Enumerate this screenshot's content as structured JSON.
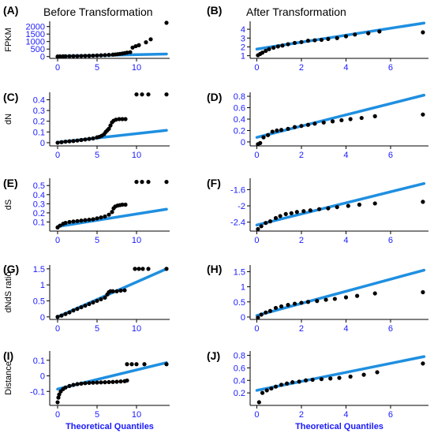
{
  "colors": {
    "points": "#000000",
    "ref_line": "#1f8fe0",
    "ticks": "#1a1aff",
    "axis": "#000000"
  },
  "chart_data": [
    {
      "panel": "(A)",
      "title": "Before Transformation",
      "type": "scatter",
      "ylabel": "FPKM",
      "xlabel": "",
      "xlim": [
        -1,
        14.2
      ],
      "ylim": [
        -120,
        2350
      ],
      "xticks": [
        0,
        5,
        10
      ],
      "yticks": [
        0,
        500,
        1000,
        1500,
        2000
      ],
      "line": {
        "x": [
          0,
          13.8
        ],
        "y": [
          20,
          170
        ]
      },
      "points": [
        [
          0,
          8
        ],
        [
          0.3,
          14
        ],
        [
          0.7,
          18
        ],
        [
          1,
          22
        ],
        [
          1.5,
          26
        ],
        [
          2,
          30
        ],
        [
          2.5,
          34
        ],
        [
          3,
          40
        ],
        [
          3.5,
          46
        ],
        [
          4,
          52
        ],
        [
          4.5,
          60
        ],
        [
          5,
          70
        ],
        [
          5.5,
          82
        ],
        [
          6,
          95
        ],
        [
          6.5,
          110
        ],
        [
          7,
          128
        ],
        [
          7.3,
          140
        ],
        [
          7.6,
          160
        ],
        [
          7.9,
          180
        ],
        [
          8.2,
          200
        ],
        [
          8.5,
          230
        ],
        [
          8.8,
          260
        ],
        [
          9.2,
          290
        ],
        [
          9.5,
          600
        ],
        [
          9.9,
          690
        ],
        [
          10.3,
          760
        ],
        [
          11.2,
          950
        ],
        [
          11.8,
          1150
        ],
        [
          13.8,
          2250
        ]
      ]
    },
    {
      "panel": "(B)",
      "title": "After Transformation",
      "type": "scatter",
      "ylabel": "",
      "xlabel": "",
      "xlim": [
        -0.3,
        7.7
      ],
      "ylim": [
        0.7,
        4.9
      ],
      "xticks": [
        0,
        2,
        4,
        6
      ],
      "yticks": [
        1,
        2,
        3,
        4
      ],
      "line": {
        "x": [
          0,
          7.5
        ],
        "y": [
          1.75,
          4.7
        ]
      },
      "points": [
        [
          0.05,
          1.05
        ],
        [
          0.15,
          1.2
        ],
        [
          0.25,
          1.35
        ],
        [
          0.4,
          1.55
        ],
        [
          0.55,
          1.75
        ],
        [
          0.75,
          1.9
        ],
        [
          0.95,
          2.05
        ],
        [
          1.15,
          2.15
        ],
        [
          1.4,
          2.3
        ],
        [
          1.7,
          2.45
        ],
        [
          2.0,
          2.55
        ],
        [
          2.3,
          2.7
        ],
        [
          2.6,
          2.75
        ],
        [
          2.9,
          2.8
        ],
        [
          3.2,
          2.9
        ],
        [
          3.6,
          3.0
        ],
        [
          4.0,
          3.2
        ],
        [
          4.4,
          3.4
        ],
        [
          5.0,
          3.55
        ],
        [
          5.5,
          3.75
        ],
        [
          7.45,
          3.65
        ]
      ]
    },
    {
      "panel": "(C)",
      "title": "",
      "type": "scatter",
      "ylabel": "dN",
      "xlabel": "",
      "xlim": [
        -1,
        14.2
      ],
      "ylim": [
        -0.03,
        0.47
      ],
      "xticks": [
        0,
        5,
        10
      ],
      "yticks": [
        0.0,
        0.1,
        0.2,
        0.3,
        0.4
      ],
      "line": {
        "x": [
          0,
          13.8
        ],
        "y": [
          0.003,
          0.115
        ]
      },
      "points": [
        [
          0,
          0.0
        ],
        [
          0.5,
          0.005
        ],
        [
          1,
          0.01
        ],
        [
          1.5,
          0.013
        ],
        [
          2,
          0.016
        ],
        [
          2.5,
          0.02
        ],
        [
          3,
          0.025
        ],
        [
          3.5,
          0.03
        ],
        [
          4,
          0.035
        ],
        [
          4.5,
          0.04
        ],
        [
          5,
          0.05
        ],
        [
          5.3,
          0.055
        ],
        [
          5.6,
          0.065
        ],
        [
          5.9,
          0.08
        ],
        [
          6.1,
          0.1
        ],
        [
          6.3,
          0.115
        ],
        [
          6.5,
          0.13
        ],
        [
          6.7,
          0.16
        ],
        [
          6.9,
          0.19
        ],
        [
          7.1,
          0.205
        ],
        [
          7.4,
          0.215
        ],
        [
          7.8,
          0.22
        ],
        [
          8.2,
          0.22
        ],
        [
          8.6,
          0.22
        ],
        [
          10,
          0.45
        ],
        [
          10.7,
          0.45
        ],
        [
          11.5,
          0.45
        ],
        [
          13.8,
          0.45
        ]
      ]
    },
    {
      "panel": "(D)",
      "title": "",
      "type": "scatter",
      "ylabel": "",
      "xlabel": "",
      "xlim": [
        -0.3,
        7.7
      ],
      "ylim": [
        -0.07,
        0.87
      ],
      "xticks": [
        0,
        2,
        4,
        6
      ],
      "yticks": [
        0.0,
        0.2,
        0.4,
        0.6,
        0.8
      ],
      "line": {
        "x": [
          0,
          7.5
        ],
        "y": [
          0.08,
          0.82
        ]
      },
      "points": [
        [
          0.05,
          -0.04
        ],
        [
          0.15,
          -0.02
        ],
        [
          0.3,
          0.08
        ],
        [
          0.5,
          0.12
        ],
        [
          0.7,
          0.18
        ],
        [
          0.9,
          0.2
        ],
        [
          1.1,
          0.21
        ],
        [
          1.4,
          0.23
        ],
        [
          1.7,
          0.26
        ],
        [
          2.0,
          0.28
        ],
        [
          2.3,
          0.3
        ],
        [
          2.6,
          0.32
        ],
        [
          3.0,
          0.34
        ],
        [
          3.4,
          0.36
        ],
        [
          3.8,
          0.38
        ],
        [
          4.2,
          0.4
        ],
        [
          4.7,
          0.42
        ],
        [
          5.3,
          0.45
        ],
        [
          7.45,
          0.48
        ]
      ]
    },
    {
      "panel": "(E)",
      "title": "",
      "type": "scatter",
      "ylabel": "dS",
      "xlabel": "",
      "xlim": [
        -1,
        14.2
      ],
      "ylim": [
        0.0,
        0.58
      ],
      "xticks": [
        0,
        5,
        10
      ],
      "yticks": [
        0.1,
        0.2,
        0.3,
        0.4,
        0.5
      ],
      "line": {
        "x": [
          0,
          13.8
        ],
        "y": [
          0.05,
          0.24
        ]
      },
      "points": [
        [
          0,
          0.04
        ],
        [
          0.3,
          0.06
        ],
        [
          0.7,
          0.08
        ],
        [
          1,
          0.09
        ],
        [
          1.5,
          0.1
        ],
        [
          2,
          0.105
        ],
        [
          2.5,
          0.11
        ],
        [
          3,
          0.115
        ],
        [
          3.5,
          0.12
        ],
        [
          4,
          0.125
        ],
        [
          4.5,
          0.13
        ],
        [
          5,
          0.14
        ],
        [
          5.5,
          0.15
        ],
        [
          6,
          0.16
        ],
        [
          6.5,
          0.18
        ],
        [
          6.9,
          0.21
        ],
        [
          7.1,
          0.25
        ],
        [
          7.3,
          0.27
        ],
        [
          7.6,
          0.28
        ],
        [
          7.9,
          0.285
        ],
        [
          8.2,
          0.29
        ],
        [
          8.6,
          0.29
        ],
        [
          10,
          0.54
        ],
        [
          10.7,
          0.54
        ],
        [
          11.5,
          0.54
        ],
        [
          13.8,
          0.54
        ]
      ]
    },
    {
      "panel": "(F)",
      "title": "",
      "type": "scatter",
      "ylabel": "",
      "xlabel": "",
      "xlim": [
        -0.3,
        7.7
      ],
      "ylim": [
        -2.62,
        -1.32
      ],
      "xticks": [
        0,
        2,
        4,
        6
      ],
      "yticks": [
        -2.4,
        -2.0,
        -1.6
      ],
      "line": {
        "x": [
          0,
          7.5
        ],
        "y": [
          -2.47,
          -1.45
        ]
      },
      "points": [
        [
          0.05,
          -2.57
        ],
        [
          0.2,
          -2.5
        ],
        [
          0.4,
          -2.42
        ],
        [
          0.6,
          -2.38
        ],
        [
          0.85,
          -2.3
        ],
        [
          1.05,
          -2.25
        ],
        [
          1.3,
          -2.2
        ],
        [
          1.55,
          -2.18
        ],
        [
          1.8,
          -2.15
        ],
        [
          2.1,
          -2.13
        ],
        [
          2.4,
          -2.11
        ],
        [
          2.8,
          -2.08
        ],
        [
          3.2,
          -2.06
        ],
        [
          3.6,
          -2.03
        ],
        [
          4.1,
          -2.0
        ],
        [
          4.6,
          -1.97
        ],
        [
          5.3,
          -1.94
        ],
        [
          7.45,
          -1.9
        ]
      ]
    },
    {
      "panel": "(G)",
      "title": "",
      "type": "scatter",
      "ylabel": "dNdS ratio",
      "xlabel": "",
      "xlim": [
        -1,
        14.2
      ],
      "ylim": [
        -0.08,
        1.62
      ],
      "xticks": [
        0,
        5,
        10
      ],
      "yticks": [
        0.0,
        0.5,
        1.0,
        1.5
      ],
      "line": {
        "x": [
          0,
          13.8
        ],
        "y": [
          0.0,
          1.5
        ]
      },
      "points": [
        [
          0,
          0.0
        ],
        [
          0.5,
          0.04
        ],
        [
          1,
          0.09
        ],
        [
          1.5,
          0.14
        ],
        [
          2,
          0.2
        ],
        [
          2.5,
          0.25
        ],
        [
          3,
          0.3
        ],
        [
          3.5,
          0.35
        ],
        [
          4,
          0.4
        ],
        [
          4.5,
          0.45
        ],
        [
          5,
          0.5
        ],
        [
          5.5,
          0.55
        ],
        [
          6,
          0.6
        ],
        [
          6.3,
          0.7
        ],
        [
          6.5,
          0.77
        ],
        [
          6.7,
          0.8
        ],
        [
          7,
          0.8
        ],
        [
          7.5,
          0.8
        ],
        [
          8,
          0.82
        ],
        [
          8.5,
          0.83
        ],
        [
          9.8,
          1.5
        ],
        [
          10.3,
          1.5
        ],
        [
          10.8,
          1.5
        ],
        [
          11.5,
          1.5
        ],
        [
          13.8,
          1.5
        ]
      ]
    },
    {
      "panel": "(H)",
      "title": "",
      "type": "scatter",
      "ylabel": "",
      "xlabel": "",
      "xlim": [
        -0.3,
        7.7
      ],
      "ylim": [
        -0.08,
        1.72
      ],
      "xticks": [
        0,
        2,
        4,
        6
      ],
      "yticks": [
        0.0,
        0.5,
        1.0,
        1.5
      ],
      "line": {
        "x": [
          0,
          7.5
        ],
        "y": [
          0.05,
          1.55
        ]
      },
      "points": [
        [
          0.05,
          -0.02
        ],
        [
          0.2,
          0.08
        ],
        [
          0.4,
          0.15
        ],
        [
          0.6,
          0.2
        ],
        [
          0.85,
          0.3
        ],
        [
          1.1,
          0.35
        ],
        [
          1.4,
          0.4
        ],
        [
          1.7,
          0.44
        ],
        [
          2.0,
          0.47
        ],
        [
          2.3,
          0.5
        ],
        [
          2.7,
          0.53
        ],
        [
          3.1,
          0.57
        ],
        [
          3.5,
          0.6
        ],
        [
          4.0,
          0.65
        ],
        [
          4.5,
          0.7
        ],
        [
          5.3,
          0.78
        ],
        [
          7.45,
          0.82
        ]
      ]
    },
    {
      "panel": "(I)",
      "title": "",
      "type": "scatter",
      "ylabel": "Distance",
      "xlabel": "Theoretical Quantiles",
      "xlim": [
        -1,
        14.2
      ],
      "ylim": [
        -0.19,
        0.16
      ],
      "xticks": [
        0,
        5,
        10
      ],
      "yticks": [
        -0.1,
        0.0,
        0.1
      ],
      "line": {
        "x": [
          0,
          13.8
        ],
        "y": [
          -0.085,
          0.085
        ]
      },
      "points": [
        [
          0,
          -0.17
        ],
        [
          0.1,
          -0.14
        ],
        [
          0.2,
          -0.12
        ],
        [
          0.4,
          -0.1
        ],
        [
          0.7,
          -0.085
        ],
        [
          1,
          -0.075
        ],
        [
          1.5,
          -0.065
        ],
        [
          2,
          -0.058
        ],
        [
          2.5,
          -0.053
        ],
        [
          3,
          -0.05
        ],
        [
          3.5,
          -0.047
        ],
        [
          4,
          -0.045
        ],
        [
          4.5,
          -0.044
        ],
        [
          5,
          -0.043
        ],
        [
          5.5,
          -0.042
        ],
        [
          6,
          -0.041
        ],
        [
          6.5,
          -0.04
        ],
        [
          7,
          -0.039
        ],
        [
          7.5,
          -0.038
        ],
        [
          8,
          -0.036
        ],
        [
          8.5,
          -0.034
        ],
        [
          8.8,
          -0.03
        ],
        [
          8.8,
          0.075
        ],
        [
          9.4,
          0.075
        ],
        [
          10,
          0.075
        ],
        [
          11,
          0.075
        ],
        [
          13.8,
          0.075
        ]
      ]
    },
    {
      "panel": "(J)",
      "title": "",
      "type": "scatter",
      "ylabel": "",
      "xlabel": "Theoretical Quantiles",
      "xlim": [
        -0.3,
        7.7
      ],
      "ylim": [
        0.0,
        0.87
      ],
      "xticks": [
        0,
        2,
        4,
        6
      ],
      "yticks": [
        0.2,
        0.4,
        0.6,
        0.8
      ],
      "line": {
        "x": [
          0,
          7.5
        ],
        "y": [
          0.24,
          0.78
        ]
      },
      "points": [
        [
          0.1,
          0.05
        ],
        [
          0.25,
          0.2
        ],
        [
          0.45,
          0.24
        ],
        [
          0.65,
          0.27
        ],
        [
          0.85,
          0.3
        ],
        [
          1.1,
          0.33
        ],
        [
          1.35,
          0.35
        ],
        [
          1.6,
          0.37
        ],
        [
          1.9,
          0.38
        ],
        [
          2.2,
          0.4
        ],
        [
          2.5,
          0.41
        ],
        [
          2.9,
          0.42
        ],
        [
          3.3,
          0.43
        ],
        [
          3.7,
          0.44
        ],
        [
          4.2,
          0.46
        ],
        [
          4.8,
          0.49
        ],
        [
          5.4,
          0.53
        ],
        [
          7.45,
          0.67
        ]
      ]
    }
  ]
}
